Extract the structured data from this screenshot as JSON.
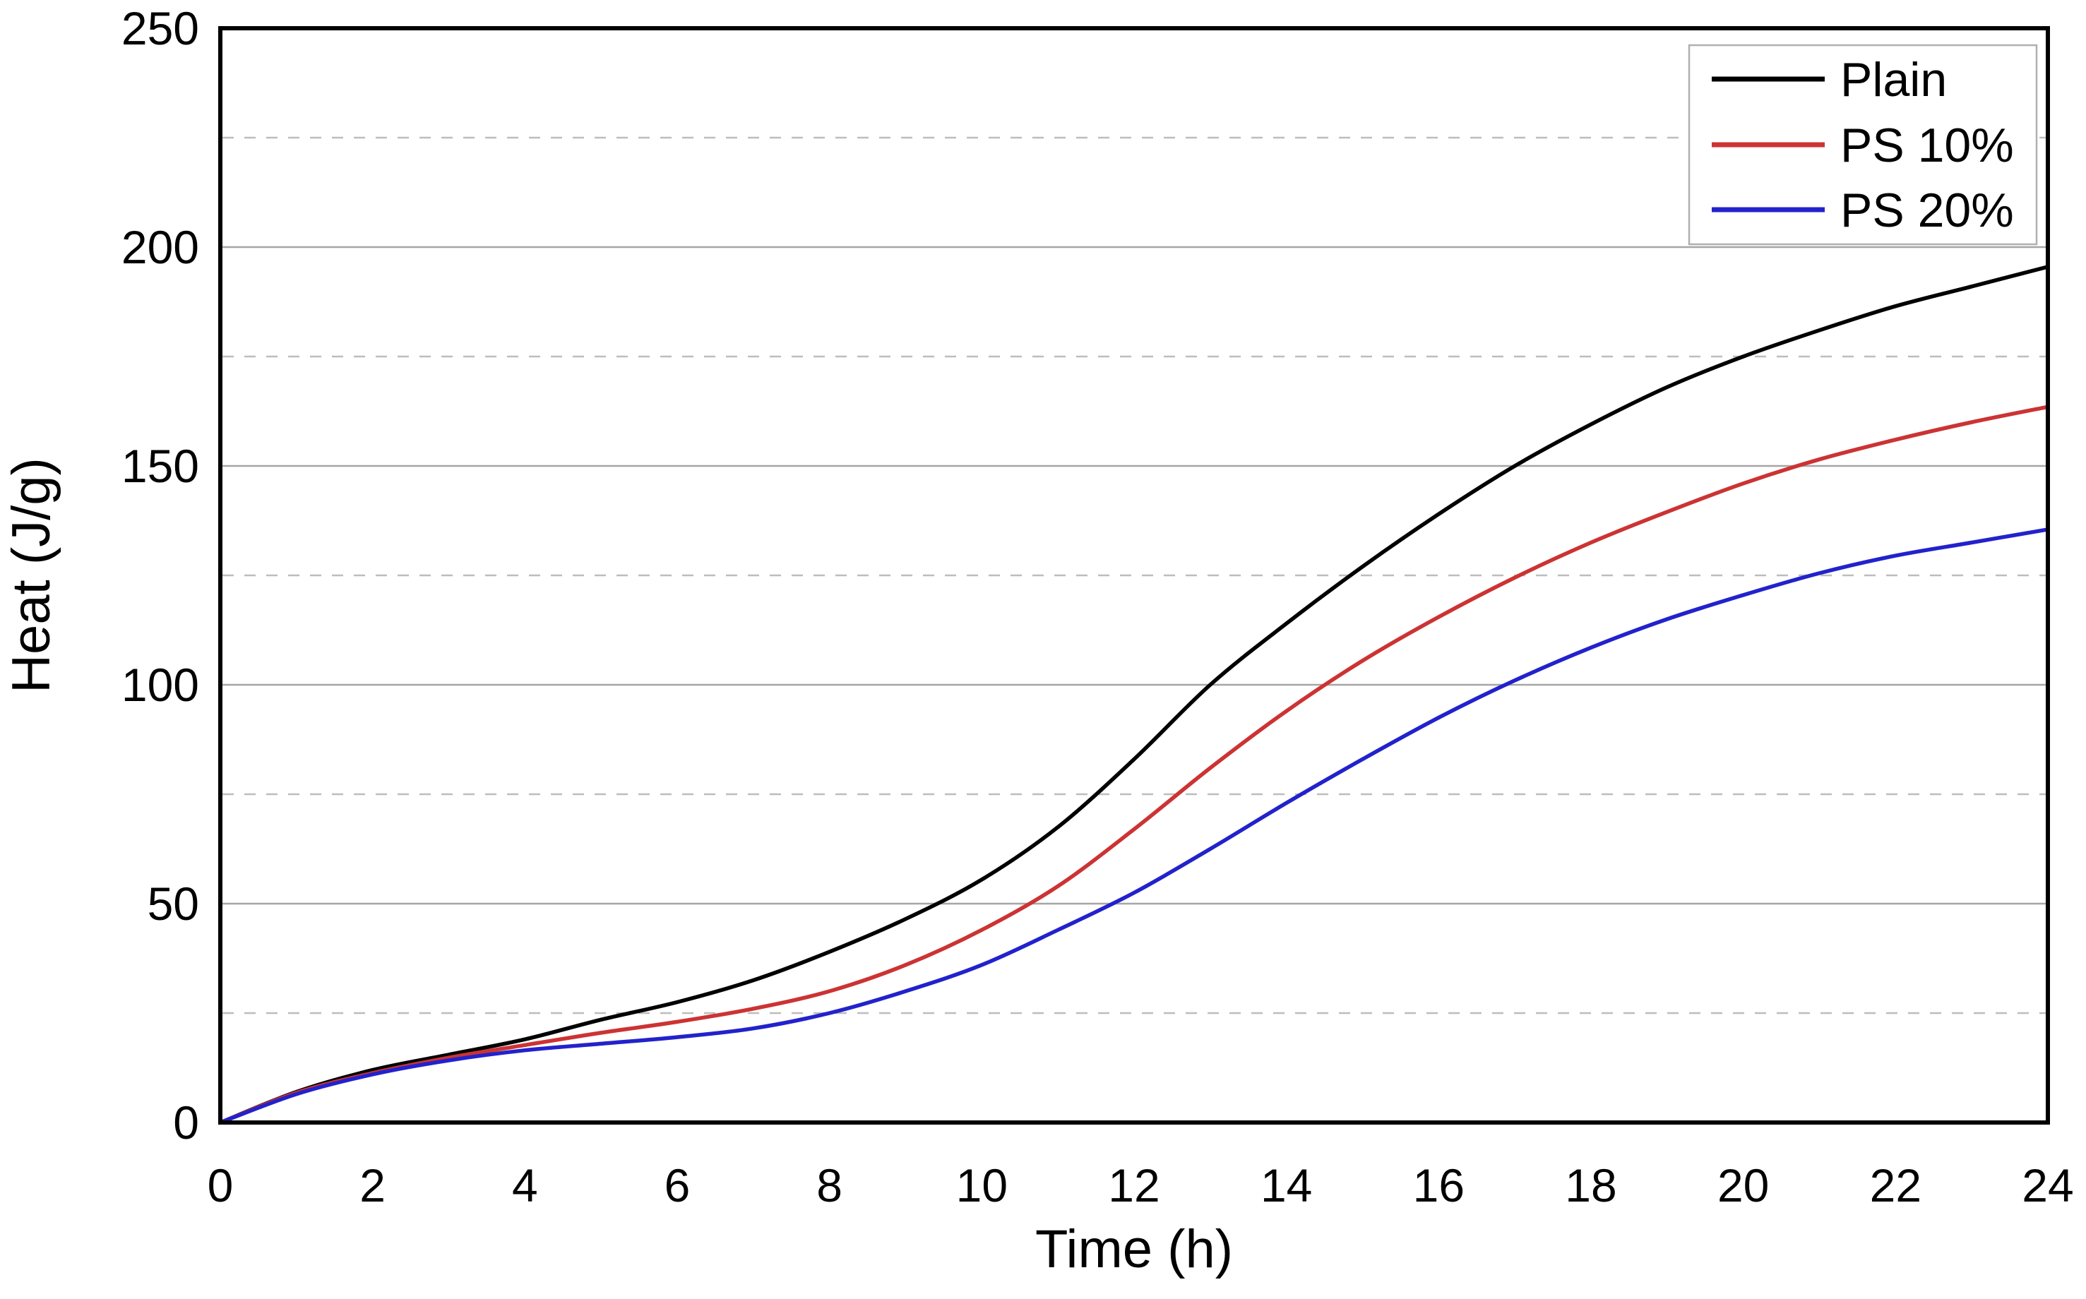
{
  "chart_data": {
    "type": "line",
    "title": "",
    "xlabel": "Time (h)",
    "ylabel": "Heat (J/g)",
    "xlim": [
      0,
      24
    ],
    "ylim": [
      0,
      250
    ],
    "x_ticks": [
      0,
      2,
      4,
      6,
      8,
      10,
      12,
      14,
      16,
      18,
      20,
      22,
      24
    ],
    "y_ticks": [
      0,
      50,
      100,
      150,
      200,
      250
    ],
    "grid": {
      "solid_y": [
        50,
        100,
        150,
        200
      ],
      "dashed_y": [
        25,
        75,
        125,
        175,
        225
      ]
    },
    "legend_position": "top-right",
    "x": [
      0,
      1,
      2,
      3,
      4,
      5,
      6,
      7,
      8,
      9,
      10,
      11,
      12,
      13,
      14,
      15,
      16,
      17,
      18,
      19,
      20,
      21,
      22,
      23,
      24
    ],
    "series": [
      {
        "name": "Plain",
        "color": "#000000",
        "values": [
          0,
          7,
          12,
          15.5,
          19,
          23.5,
          27.5,
          32.5,
          39,
          46.5,
          55.5,
          67.5,
          83,
          100,
          114,
          127,
          139,
          150,
          159.5,
          168,
          175,
          181,
          186.5,
          191,
          195.5
        ]
      },
      {
        "name": "PS 10%",
        "color": "#cc3333",
        "values": [
          0,
          6.8,
          11.3,
          14.8,
          17.7,
          20.5,
          23,
          26,
          30,
          36,
          44,
          54,
          67,
          81,
          94,
          105.5,
          115.5,
          124.5,
          132.5,
          139.5,
          146,
          151.5,
          156,
          160,
          163.5
        ]
      },
      {
        "name": "PS 20%",
        "color": "#2222cc",
        "values": [
          0,
          6.5,
          11,
          14.2,
          16.5,
          18,
          19.5,
          21.5,
          25,
          30,
          36,
          44,
          52.5,
          62.5,
          73,
          83,
          92.5,
          101,
          108.5,
          115,
          120.5,
          125.5,
          129.5,
          132.5,
          135.5
        ]
      }
    ]
  },
  "styles": {
    "background": "#ffffff",
    "frame_color": "#000000",
    "grid_solid_color": "#a6a6a6",
    "grid_dashed_color": "#bdbdbd",
    "legend_border_color": "#b0b0b0"
  }
}
